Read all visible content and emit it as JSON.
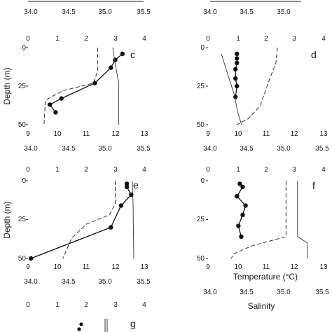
{
  "chart_data": [
    {
      "type": "line",
      "panel": "c",
      "ylabel": "Depth (m)",
      "top_axis_ticks": [
        "0",
        "1",
        "2",
        "3",
        "4"
      ],
      "bottom_axis_ticks": [
        "9",
        "10",
        "11",
        "12",
        "13"
      ],
      "salinity_axis_ticks": [
        "34.0",
        "34.5",
        "35.0",
        "35.5"
      ],
      "ylim": [
        0,
        50
      ],
      "y_ticks": [
        "0",
        "25",
        "50"
      ],
      "series": [
        {
          "style": "solid-dots",
          "top_axis_range": [
            0,
            4
          ],
          "points": [
            {
              "x": 3.25,
              "y": 4
            },
            {
              "x": 3.0,
              "y": 8
            },
            {
              "x": 2.85,
              "y": 13
            },
            {
              "x": 2.3,
              "y": 23
            },
            {
              "x": 1.15,
              "y": 33
            },
            {
              "x": 0.75,
              "y": 37
            },
            {
              "x": 0.95,
              "y": 42
            }
          ]
        },
        {
          "style": "dashed",
          "bottom_axis_range": [
            9,
            13
          ],
          "points": [
            {
              "x": 11.4,
              "y": 0
            },
            {
              "x": 11.4,
              "y": 15
            },
            {
              "x": 11.25,
              "y": 23
            },
            {
              "x": 10.2,
              "y": 28
            },
            {
              "x": 9.6,
              "y": 34
            },
            {
              "x": 9.55,
              "y": 50
            }
          ]
        },
        {
          "style": "thin",
          "salinity_axis_range": [
            34.0,
            35.5
          ],
          "points": [
            {
              "x": 35.09,
              "y": 0
            },
            {
              "x": 35.12,
              "y": 10
            },
            {
              "x": 35.17,
              "y": 23
            },
            {
              "x": 35.17,
              "y": 50
            }
          ]
        }
      ]
    },
    {
      "type": "line",
      "panel": "d",
      "top_axis_ticks": [
        "0",
        "1",
        "2",
        "3",
        "4"
      ],
      "bottom_axis_ticks": [
        "9",
        "10",
        "11",
        "12",
        "13"
      ],
      "salinity_axis_ticks": [
        "34.0",
        "34.5",
        "35.0",
        "35.5"
      ],
      "ylim": [
        0,
        50
      ],
      "y_ticks": [
        "0",
        "25",
        "50"
      ],
      "series": [
        {
          "style": "solid-dots",
          "top_axis_range": [
            0,
            4
          ],
          "points": [
            {
              "x": 1.0,
              "y": 4
            },
            {
              "x": 1.0,
              "y": 7
            },
            {
              "x": 1.0,
              "y": 10
            },
            {
              "x": 0.95,
              "y": 14
            },
            {
              "x": 0.95,
              "y": 20
            },
            {
              "x": 1.0,
              "y": 25
            },
            {
              "x": 0.95,
              "y": 32
            }
          ]
        },
        {
          "style": "dashed",
          "bottom_axis_range": [
            9,
            13
          ],
          "points": [
            {
              "x": 11.4,
              "y": 0
            },
            {
              "x": 11.35,
              "y": 10
            },
            {
              "x": 11.1,
              "y": 22
            },
            {
              "x": 10.8,
              "y": 38
            },
            {
              "x": 10.4,
              "y": 46
            },
            {
              "x": 10.0,
              "y": 50
            }
          ]
        },
        {
          "style": "thin",
          "salinity_axis_range": [
            34.0,
            35.5
          ],
          "points": [
            {
              "x": 34.15,
              "y": 4
            },
            {
              "x": 34.22,
              "y": 15
            },
            {
              "x": 34.32,
              "y": 30
            },
            {
              "x": 34.37,
              "y": 42
            },
            {
              "x": 34.42,
              "y": 50
            }
          ]
        }
      ]
    },
    {
      "type": "line",
      "panel": "e",
      "ylabel": "Depth (m)",
      "top_axis_ticks": [
        "0",
        "1",
        "2",
        "3",
        "4"
      ],
      "bottom_axis_ticks": [
        "9",
        "10",
        "11",
        "12",
        "13"
      ],
      "salinity_axis_ticks": [
        "34.0",
        "34.5",
        "35.0",
        "35.5"
      ],
      "ylim": [
        0,
        50
      ],
      "y_ticks": [
        "0",
        "25",
        "50"
      ],
      "series": [
        {
          "style": "solid-dots",
          "top_axis_range": [
            0,
            4
          ],
          "points": [
            {
              "x": 3.4,
              "y": 2
            },
            {
              "x": 3.4,
              "y": 4
            },
            {
              "x": 3.55,
              "y": 9
            },
            {
              "x": 3.2,
              "y": 16
            },
            {
              "x": 2.85,
              "y": 30
            },
            {
              "x": 0.1,
              "y": 50
            }
          ]
        },
        {
          "style": "dashed",
          "bottom_axis_range": [
            9,
            13
          ],
          "points": [
            {
              "x": 12.0,
              "y": 0
            },
            {
              "x": 12.0,
              "y": 15
            },
            {
              "x": 11.8,
              "y": 22
            },
            {
              "x": 11.0,
              "y": 28
            },
            {
              "x": 10.5,
              "y": 37
            },
            {
              "x": 10.2,
              "y": 50
            }
          ]
        },
        {
          "style": "thin",
          "salinity_axis_range": [
            34.0,
            35.5
          ],
          "points": [
            {
              "x": 35.35,
              "y": 0
            },
            {
              "x": 35.36,
              "y": 15
            },
            {
              "x": 35.37,
              "y": 50
            }
          ]
        }
      ]
    },
    {
      "type": "line",
      "panel": "f",
      "top_axis_ticks": [
        "0",
        "1",
        "2",
        "3",
        "4"
      ],
      "bottom_axis_ticks": [
        "9",
        "10",
        "11",
        "12",
        "13"
      ],
      "salinity_axis_ticks": [
        "34.0",
        "34.5",
        "35.0",
        "35.5"
      ],
      "xlabel": "Temperature (°C)",
      "salinity_label": "Salinity",
      "ylim": [
        0,
        50
      ],
      "y_ticks": [
        "0",
        "25",
        "50"
      ],
      "series": [
        {
          "style": "solid-dots",
          "top_axis_range": [
            0,
            4
          ],
          "points": [
            {
              "x": 1.1,
              "y": 2
            },
            {
              "x": 1.2,
              "y": 4
            },
            {
              "x": 1.0,
              "y": 10
            },
            {
              "x": 1.3,
              "y": 16
            },
            {
              "x": 1.2,
              "y": 22
            },
            {
              "x": 1.05,
              "y": 29
            },
            {
              "x": 1.15,
              "y": 36
            }
          ]
        },
        {
          "style": "dashed",
          "bottom_axis_range": [
            9,
            13
          ],
          "points": [
            {
              "x": 11.7,
              "y": 0
            },
            {
              "x": 11.7,
              "y": 36
            },
            {
              "x": 11.5,
              "y": 37
            },
            {
              "x": 10.5,
              "y": 42
            },
            {
              "x": 9.9,
              "y": 47
            },
            {
              "x": 9.8,
              "y": 50
            }
          ]
        },
        {
          "style": "thin",
          "salinity_axis_range": [
            34.0,
            35.5
          ],
          "points": [
            {
              "x": 35.17,
              "y": 0
            },
            {
              "x": 35.17,
              "y": 36
            },
            {
              "x": 35.3,
              "y": 40
            },
            {
              "x": 35.3,
              "y": 50
            }
          ]
        }
      ]
    },
    {
      "type": "line",
      "panel": "g",
      "top_axis_ticks": [
        "0",
        "1",
        "2",
        "3",
        "4"
      ]
    }
  ],
  "top_strip": {
    "left_ticks": [
      "34.0",
      "34.5",
      "35.0",
      "35.5"
    ],
    "right_ticks": [
      "34.0",
      "34.5",
      "35.0"
    ]
  }
}
